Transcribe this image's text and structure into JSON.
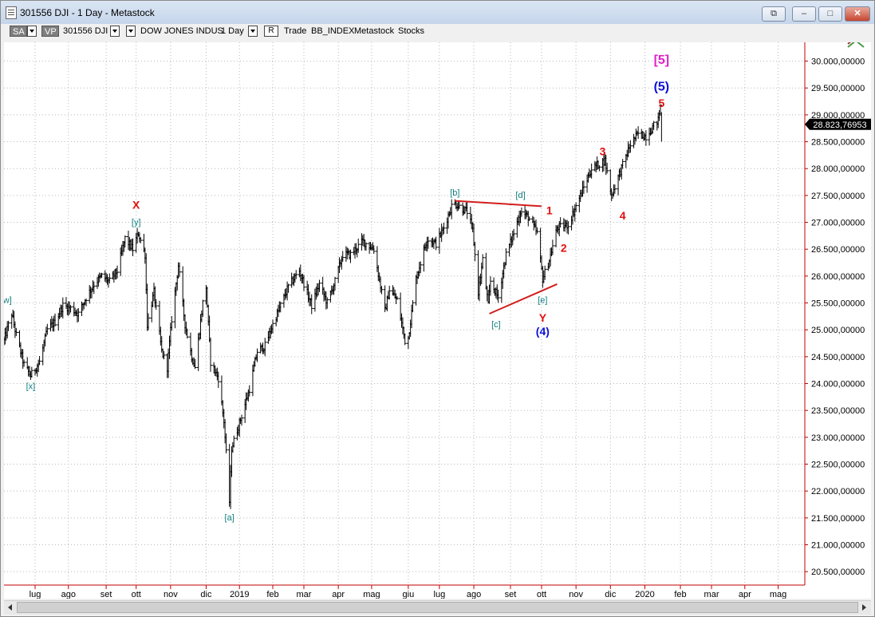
{
  "window": {
    "title": "301556 DJI - 1 Day - Metastock",
    "buttons": {
      "restore": "⧉",
      "minimize": "–",
      "maximize": "□",
      "close": "✕"
    }
  },
  "toolbar": {
    "sa": "SA",
    "vp": "VP",
    "symbol": "301556 DJI",
    "name": "DOW JONES INDUS",
    "periodicity": "1 Day",
    "r": "R",
    "trade": "Trade",
    "index": "BB_INDEX",
    "source": "Metastock",
    "type": "Stocks"
  },
  "colors": {
    "grid": "#b8b8b8",
    "price_bar": "#000000",
    "axis_line": "#c00000",
    "trendline": "#d21e1e",
    "label_teal": "#11807f",
    "label_red": "#e01010",
    "label_blue": "#0a10d8",
    "label_magenta": "#e020c8",
    "last_price_bg": "#000000"
  },
  "chart_data": {
    "type": "bar",
    "title": "",
    "xlabel": "",
    "ylabel": "",
    "ylim": [
      20250,
      30350
    ],
    "xlim": [
      "2018-06-04",
      "2020-05-25"
    ],
    "grid": true,
    "y_ticks": [
      20500,
      21000,
      21500,
      22000,
      22500,
      23000,
      23500,
      24000,
      24500,
      25000,
      25500,
      26000,
      26500,
      27000,
      27500,
      28000,
      28500,
      29000,
      29500,
      30000
    ],
    "y_tick_labels": [
      "20.500,00000",
      "21.000,00000",
      "21.500,00000",
      "22.000,00000",
      "22.500,00000",
      "23.000,00000",
      "23.500,00000",
      "24.000,00000",
      "24.500,00000",
      "25.000,00000",
      "25.500,00000",
      "26.000,00000",
      "26.500,00000",
      "27.000,00000",
      "27.500,00000",
      "28.000,00000",
      "28.500,00000",
      "29.000,00000",
      "29.500,00000",
      "30.000,00000"
    ],
    "x_ticks": [
      {
        "date": "2018-07-02",
        "label": "lug"
      },
      {
        "date": "2018-08-01",
        "label": "ago"
      },
      {
        "date": "2018-09-04",
        "label": "set"
      },
      {
        "date": "2018-10-01",
        "label": "ott"
      },
      {
        "date": "2018-11-01",
        "label": "nov"
      },
      {
        "date": "2018-12-03",
        "label": "dic"
      },
      {
        "date": "2019-01-02",
        "label": "2019"
      },
      {
        "date": "2019-02-01",
        "label": "feb"
      },
      {
        "date": "2019-03-01",
        "label": "mar"
      },
      {
        "date": "2019-04-01",
        "label": "apr"
      },
      {
        "date": "2019-05-01",
        "label": "mag"
      },
      {
        "date": "2019-06-03",
        "label": "giu"
      },
      {
        "date": "2019-07-01",
        "label": "lug"
      },
      {
        "date": "2019-08-01",
        "label": "ago"
      },
      {
        "date": "2019-09-03",
        "label": "set"
      },
      {
        "date": "2019-10-01",
        "label": "ott"
      },
      {
        "date": "2019-11-01",
        "label": "nov"
      },
      {
        "date": "2019-12-02",
        "label": "dic"
      },
      {
        "date": "2020-01-02",
        "label": "2020"
      },
      {
        "date": "2020-02-03",
        "label": "feb"
      },
      {
        "date": "2020-03-02",
        "label": "mar"
      },
      {
        "date": "2020-04-01",
        "label": "apr"
      },
      {
        "date": "2020-05-01",
        "label": "mag"
      }
    ],
    "last_price": 28823.76953,
    "last_price_label": "28.823,76953",
    "path": [
      {
        "x": "2018-06-04",
        "y": 24800
      },
      {
        "x": "2018-06-11",
        "y": 25300
      },
      {
        "x": "2018-06-15",
        "y": 24900
      },
      {
        "x": "2018-06-22",
        "y": 24350
      },
      {
        "x": "2018-06-28",
        "y": 24150
      },
      {
        "x": "2018-07-06",
        "y": 24400
      },
      {
        "x": "2018-07-13",
        "y": 25000
      },
      {
        "x": "2018-07-20",
        "y": 25150
      },
      {
        "x": "2018-07-27",
        "y": 25450
      },
      {
        "x": "2018-08-03",
        "y": 25400
      },
      {
        "x": "2018-08-10",
        "y": 25300
      },
      {
        "x": "2018-08-17",
        "y": 25600
      },
      {
        "x": "2018-08-24",
        "y": 25850
      },
      {
        "x": "2018-08-31",
        "y": 26000
      },
      {
        "x": "2018-09-07",
        "y": 25900
      },
      {
        "x": "2018-09-14",
        "y": 26100
      },
      {
        "x": "2018-09-21",
        "y": 26700
      },
      {
        "x": "2018-09-28",
        "y": 26500
      },
      {
        "x": "2018-10-03",
        "y": 26800
      },
      {
        "x": "2018-10-09",
        "y": 26400
      },
      {
        "x": "2018-10-11",
        "y": 25100
      },
      {
        "x": "2018-10-17",
        "y": 25700
      },
      {
        "x": "2018-10-24",
        "y": 24600
      },
      {
        "x": "2018-10-29",
        "y": 24300
      },
      {
        "x": "2018-11-02",
        "y": 25200
      },
      {
        "x": "2018-11-08",
        "y": 26200
      },
      {
        "x": "2018-11-14",
        "y": 25100
      },
      {
        "x": "2018-11-20",
        "y": 24500
      },
      {
        "x": "2018-11-23",
        "y": 24300
      },
      {
        "x": "2018-11-30",
        "y": 25500
      },
      {
        "x": "2018-12-03",
        "y": 25800
      },
      {
        "x": "2018-12-07",
        "y": 24400
      },
      {
        "x": "2018-12-14",
        "y": 24100
      },
      {
        "x": "2018-12-19",
        "y": 23300
      },
      {
        "x": "2018-12-24",
        "y": 21800
      },
      {
        "x": "2018-12-26",
        "y": 22800
      },
      {
        "x": "2019-01-04",
        "y": 23400
      },
      {
        "x": "2019-01-11",
        "y": 23900
      },
      {
        "x": "2019-01-18",
        "y": 24600
      },
      {
        "x": "2019-01-25",
        "y": 24700
      },
      {
        "x": "2019-02-01",
        "y": 25100
      },
      {
        "x": "2019-02-15",
        "y": 25800
      },
      {
        "x": "2019-02-25",
        "y": 26100
      },
      {
        "x": "2019-03-08",
        "y": 25450
      },
      {
        "x": "2019-03-15",
        "y": 25850
      },
      {
        "x": "2019-03-22",
        "y": 25500
      },
      {
        "x": "2019-03-29",
        "y": 25900
      },
      {
        "x": "2019-04-05",
        "y": 26400
      },
      {
        "x": "2019-04-12",
        "y": 26400
      },
      {
        "x": "2019-04-23",
        "y": 26650
      },
      {
        "x": "2019-05-03",
        "y": 26500
      },
      {
        "x": "2019-05-13",
        "y": 25350
      },
      {
        "x": "2019-05-17",
        "y": 25750
      },
      {
        "x": "2019-05-24",
        "y": 25550
      },
      {
        "x": "2019-05-31",
        "y": 24800
      },
      {
        "x": "2019-06-03",
        "y": 24850
      },
      {
        "x": "2019-06-10",
        "y": 25950
      },
      {
        "x": "2019-06-20",
        "y": 26700
      },
      {
        "x": "2019-06-28",
        "y": 26600
      },
      {
        "x": "2019-07-05",
        "y": 26900
      },
      {
        "x": "2019-07-12",
        "y": 27300
      },
      {
        "x": "2019-07-15",
        "y": 27350
      },
      {
        "x": "2019-07-26",
        "y": 27200
      },
      {
        "x": "2019-07-31",
        "y": 26850
      },
      {
        "x": "2019-08-05",
        "y": 25700
      },
      {
        "x": "2019-08-09",
        "y": 26300
      },
      {
        "x": "2019-08-14",
        "y": 25450
      },
      {
        "x": "2019-08-16",
        "y": 25900
      },
      {
        "x": "2019-08-23",
        "y": 25600
      },
      {
        "x": "2019-08-30",
        "y": 26400
      },
      {
        "x": "2019-09-06",
        "y": 26800
      },
      {
        "x": "2019-09-12",
        "y": 27200
      },
      {
        "x": "2019-09-19",
        "y": 27100
      },
      {
        "x": "2019-09-27",
        "y": 26800
      },
      {
        "x": "2019-10-02",
        "y": 25950
      },
      {
        "x": "2019-10-08",
        "y": 26300
      },
      {
        "x": "2019-10-15",
        "y": 26900
      },
      {
        "x": "2019-10-25",
        "y": 26950
      },
      {
        "x": "2019-11-01",
        "y": 27300
      },
      {
        "x": "2019-11-08",
        "y": 27650
      },
      {
        "x": "2019-11-15",
        "y": 28000
      },
      {
        "x": "2019-11-27",
        "y": 28150
      },
      {
        "x": "2019-12-03",
        "y": 27500
      },
      {
        "x": "2019-12-10",
        "y": 27900
      },
      {
        "x": "2019-12-20",
        "y": 28450
      },
      {
        "x": "2019-12-27",
        "y": 28650
      },
      {
        "x": "2020-01-03",
        "y": 28600
      },
      {
        "x": "2020-01-10",
        "y": 28800
      },
      {
        "x": "2020-01-14",
        "y": 28900
      },
      {
        "x": "2020-01-17",
        "y": 29300
      }
    ],
    "trendlines": [
      {
        "x1": "2019-07-15",
        "y1": 27400,
        "x2": "2019-10-01",
        "y2": 27300
      },
      {
        "x1": "2019-08-15",
        "y1": 25300,
        "x2": "2019-10-15",
        "y2": 25850
      }
    ],
    "annotations": [
      {
        "text": "[w]",
        "x": "2018-06-06",
        "y": 25500,
        "color": "label_teal",
        "size": "small"
      },
      {
        "text": "[x]",
        "x": "2018-06-28",
        "y": 23900,
        "color": "label_teal",
        "size": "small"
      },
      {
        "text": "X",
        "x": "2018-10-01",
        "y": 27250,
        "color": "label_red",
        "size": "medium"
      },
      {
        "text": "[y]",
        "x": "2018-10-01",
        "y": 26950,
        "color": "label_teal",
        "size": "small"
      },
      {
        "text": "[a]",
        "x": "2018-12-24",
        "y": 21450,
        "color": "label_teal",
        "size": "small"
      },
      {
        "text": "[b]",
        "x": "2019-07-15",
        "y": 27500,
        "color": "label_teal",
        "size": "small"
      },
      {
        "text": "[c]",
        "x": "2019-08-21",
        "y": 25050,
        "color": "label_teal",
        "size": "small"
      },
      {
        "text": "[d]",
        "x": "2019-09-12",
        "y": 27450,
        "color": "label_teal",
        "size": "small"
      },
      {
        "text": "[e]",
        "x": "2019-10-02",
        "y": 25500,
        "color": "label_teal",
        "size": "small"
      },
      {
        "text": "Y",
        "x": "2019-10-02",
        "y": 25150,
        "color": "label_red",
        "size": "medium"
      },
      {
        "text": "(4)",
        "x": "2019-10-02",
        "y": 24900,
        "color": "label_blue",
        "size": "medium"
      },
      {
        "text": "1",
        "x": "2019-10-08",
        "y": 27150,
        "color": "label_red",
        "size": "medium"
      },
      {
        "text": "2",
        "x": "2019-10-21",
        "y": 26450,
        "color": "label_red",
        "size": "medium"
      },
      {
        "text": "3",
        "x": "2019-11-25",
        "y": 28250,
        "color": "label_red",
        "size": "medium"
      },
      {
        "text": "4",
        "x": "2019-12-13",
        "y": 27050,
        "color": "label_red",
        "size": "medium"
      },
      {
        "text": "5",
        "x": "2020-01-17",
        "y": 29150,
        "color": "label_red",
        "size": "medium"
      },
      {
        "text": "(5)",
        "x": "2020-01-17",
        "y": 29450,
        "color": "label_blue",
        "size": "large"
      },
      {
        "text": "[5]",
        "x": "2020-01-17",
        "y": 29950,
        "color": "label_magenta",
        "size": "large"
      }
    ]
  }
}
